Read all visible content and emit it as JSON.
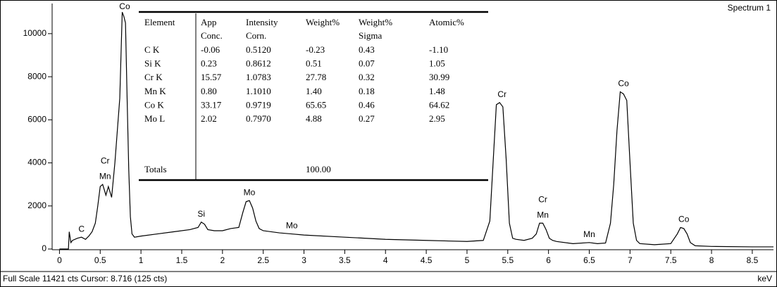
{
  "chart_data": {
    "type": "line",
    "title": "Spectrum 1",
    "footer": "Full Scale 11421 cts Cursor: 8.716  (125 cts)",
    "xlabel": "keV",
    "xlim": [
      -0.09,
      8.76
    ],
    "ylim": [
      0,
      11400
    ],
    "xticks": [
      0,
      0.5,
      1,
      1.5,
      2,
      2.5,
      3,
      3.5,
      4,
      4.5,
      5,
      5.5,
      6,
      6.5,
      7,
      7.5,
      8,
      8.5
    ],
    "yticks": [
      0,
      2000,
      4000,
      6000,
      8000,
      10000
    ],
    "color": "#000000",
    "x": [
      0,
      0.11,
      0.12,
      0.14,
      0.16,
      0.22,
      0.27,
      0.32,
      0.36,
      0.4,
      0.44,
      0.47,
      0.5,
      0.53,
      0.57,
      0.6,
      0.64,
      0.68,
      0.71,
      0.74,
      0.77,
      0.79,
      0.81,
      0.83,
      0.85,
      0.87,
      0.89,
      0.92,
      1.0,
      1.2,
      1.4,
      1.6,
      1.7,
      1.74,
      1.78,
      1.82,
      1.9,
      2.0,
      2.1,
      2.2,
      2.25,
      2.29,
      2.33,
      2.37,
      2.41,
      2.45,
      2.5,
      2.7,
      2.85,
      3.0,
      3.5,
      4.0,
      4.5,
      5.0,
      5.2,
      5.28,
      5.32,
      5.36,
      5.4,
      5.44,
      5.48,
      5.52,
      5.56,
      5.6,
      5.7,
      5.8,
      5.85,
      5.89,
      5.93,
      5.97,
      6.01,
      6.05,
      6.1,
      6.3,
      6.5,
      6.6,
      6.7,
      6.76,
      6.8,
      6.84,
      6.88,
      6.92,
      6.96,
      7.0,
      7.04,
      7.08,
      7.12,
      7.3,
      7.5,
      7.58,
      7.62,
      7.66,
      7.7,
      7.74,
      7.8,
      8.0,
      8.5,
      8.76
    ],
    "values": [
      0,
      0,
      800,
      300,
      400,
      500,
      550,
      450,
      600,
      800,
      1200,
      2000,
      2900,
      3000,
      2500,
      2900,
      2400,
      4000,
      5500,
      7000,
      11000,
      10800,
      10500,
      7000,
      3700,
      1500,
      700,
      550,
      600,
      700,
      800,
      900,
      1000,
      1250,
      1150,
      900,
      850,
      850,
      950,
      1000,
      1700,
      2200,
      2250,
      1900,
      1300,
      950,
      850,
      750,
      700,
      650,
      550,
      450,
      400,
      350,
      400,
      1300,
      4000,
      6700,
      6800,
      6600,
      4200,
      1200,
      500,
      450,
      400,
      500,
      700,
      1200,
      1200,
      900,
      500,
      400,
      350,
      250,
      300,
      250,
      280,
      1200,
      3000,
      5500,
      7300,
      7200,
      6900,
      4000,
      1200,
      400,
      250,
      200,
      250,
      700,
      1000,
      950,
      700,
      300,
      150,
      120,
      100,
      100
    ],
    "annotations": [
      {
        "text": "C",
        "x": 0.27
      },
      {
        "text": "Mn",
        "x": 0.56
      },
      {
        "text": "Cr",
        "x": 0.56
      },
      {
        "text": "Co",
        "x": 0.8
      },
      {
        "text": "Si",
        "x": 1.74
      },
      {
        "text": "Mo",
        "x": 2.33
      },
      {
        "text": "Mo",
        "x": 2.85
      },
      {
        "text": "Cr",
        "x": 5.43
      },
      {
        "text": "Mn",
        "x": 5.93
      },
      {
        "text": "Cr",
        "x": 5.93
      },
      {
        "text": "Mn",
        "x": 6.5
      },
      {
        "text": "Co",
        "x": 6.92
      },
      {
        "text": "Co",
        "x": 7.66
      }
    ]
  },
  "table": {
    "columns": [
      [
        "Element"
      ],
      [
        "App",
        "Conc."
      ],
      [
        "Intensity",
        "Corn."
      ],
      [
        "Weight%"
      ],
      [
        "Weight%",
        "Sigma"
      ],
      [
        "Atomic%"
      ]
    ],
    "rows": [
      [
        "C K",
        "-0.06",
        "0.5120",
        "-0.23",
        "0.43",
        "-1.10"
      ],
      [
        "Si K",
        "0.23",
        "0.8612",
        "0.51",
        "0.07",
        "1.05"
      ],
      [
        "Cr K",
        "15.57",
        "1.0783",
        "27.78",
        "0.32",
        "30.99"
      ],
      [
        "Mn K",
        "0.80",
        "1.1010",
        "1.40",
        "0.18",
        "1.48"
      ],
      [
        "Co K",
        "33.17",
        "0.9719",
        "65.65",
        "0.46",
        "64.62"
      ],
      [
        "Mo L",
        "2.02",
        "0.7970",
        "4.88",
        "0.27",
        "2.95"
      ]
    ],
    "totals": {
      "label": "Totals",
      "weight": "100.00"
    }
  }
}
